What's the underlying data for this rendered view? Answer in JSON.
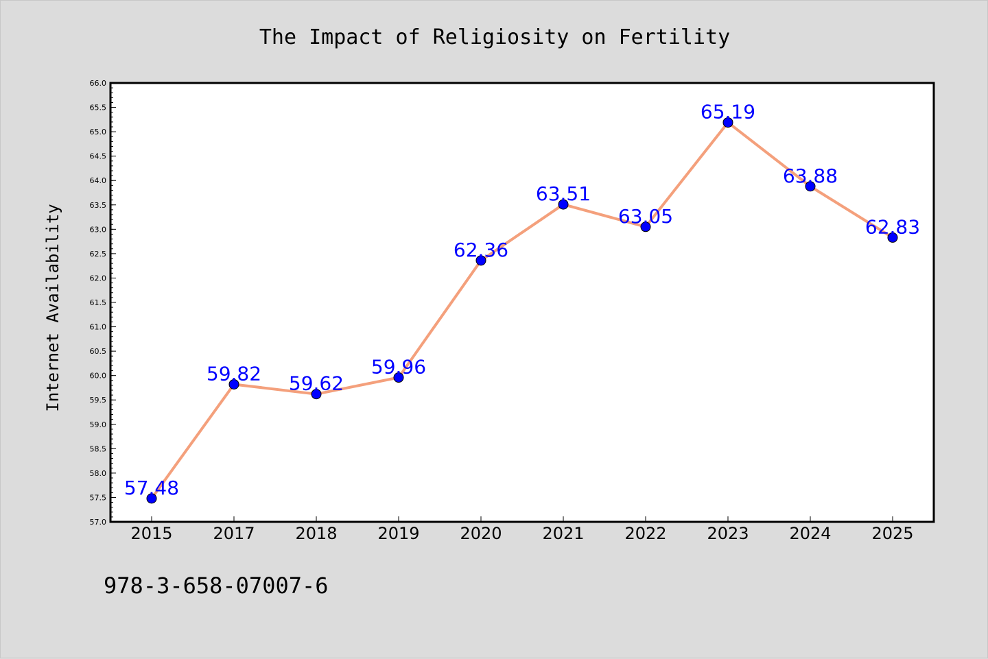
{
  "colors": {
    "line": "#f4a07c",
    "marker": "#0000ff",
    "label": "#0000ff",
    "background": "#dcdcdc",
    "plot_bg": "#ffffff"
  },
  "footnote": "978-3-658-07007-6",
  "chart_data": {
    "type": "line",
    "title": "The Impact of Religiosity on Fertility",
    "xlabel": "",
    "ylabel": "Internet Availability",
    "categories": [
      "2015",
      "2017",
      "2018",
      "2019",
      "2020",
      "2021",
      "2022",
      "2023",
      "2024",
      "2025"
    ],
    "series": [
      {
        "values": [
          57.48,
          59.82,
          59.62,
          59.96,
          62.36,
          63.51,
          63.05,
          65.19,
          63.88,
          62.83
        ]
      }
    ],
    "data_labels": [
      "57.48",
      "59.82",
      "59.62",
      "59.96",
      "62.36",
      "63.51",
      "63.05",
      "65.19",
      "63.88",
      "62.83"
    ],
    "ylim": [
      57.0,
      66.0
    ],
    "yticks": [
      "57.0",
      "57.5",
      "58.0",
      "58.5",
      "59.0",
      "59.5",
      "60.0",
      "60.5",
      "61.0",
      "61.5",
      "62.0",
      "62.5",
      "63.0",
      "63.5",
      "64.0",
      "64.5",
      "65.0",
      "65.5",
      "66.0"
    ],
    "grid": false,
    "legend": "none"
  }
}
